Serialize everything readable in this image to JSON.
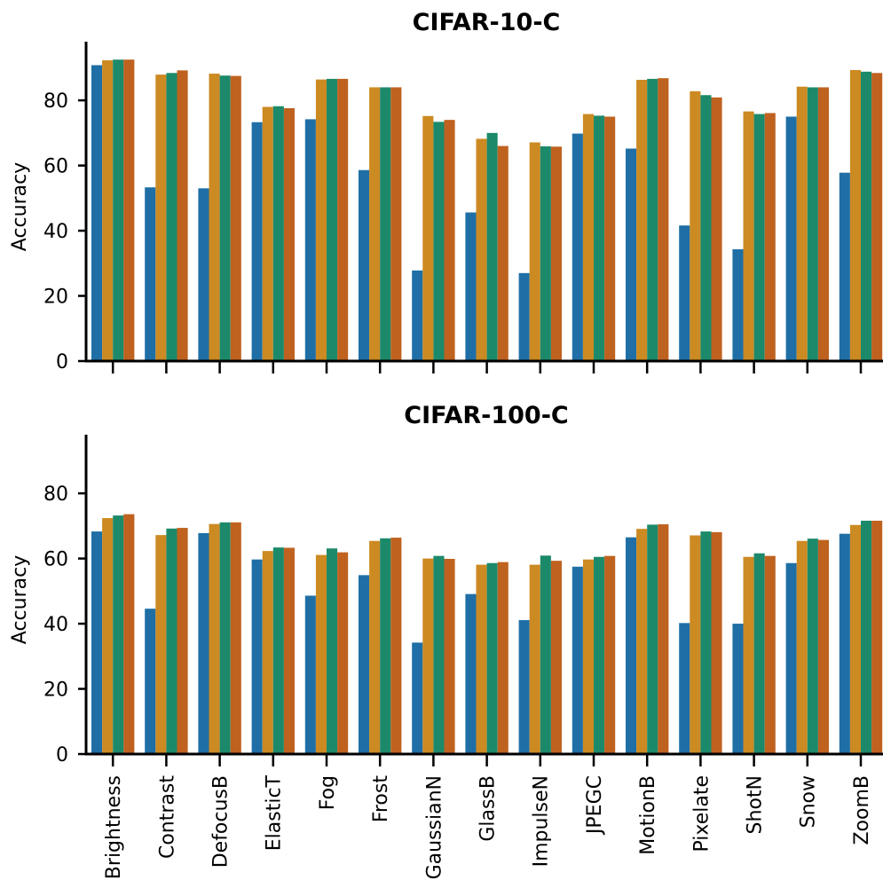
{
  "chart_data": [
    {
      "type": "bar",
      "title": "CIFAR-10-C",
      "xlabel": "",
      "ylabel": "Accuracy",
      "ylim": [
        0,
        98
      ],
      "yticks": [
        0,
        20,
        40,
        60,
        80
      ],
      "show_x_tick_labels": false,
      "categories": [
        "Brightness",
        "Contrast",
        "DefocusB",
        "ElasticT",
        "Fog",
        "Frost",
        "GaussianN",
        "GlassB",
        "ImpulseN",
        "JPEGC",
        "MotionB",
        "Pixelate",
        "ShotN",
        "Snow",
        "ZoomB"
      ],
      "series": [
        {
          "color": "#1f6fa6",
          "values": [
            90.8,
            53.3,
            53.0,
            73.3,
            74.2,
            58.6,
            27.8,
            45.6,
            27.0,
            69.8,
            65.2,
            41.6,
            34.3,
            75.0,
            57.8
          ]
        },
        {
          "color": "#cc8a22",
          "values": [
            92.3,
            87.9,
            88.2,
            78.0,
            86.4,
            84.0,
            75.2,
            68.2,
            67.1,
            75.8,
            86.3,
            82.8,
            76.6,
            84.2,
            89.3
          ]
        },
        {
          "color": "#1c8a6a",
          "values": [
            92.5,
            88.4,
            87.6,
            78.2,
            86.6,
            84.0,
            73.4,
            70.0,
            65.9,
            75.3,
            86.6,
            81.6,
            75.8,
            84.0,
            88.8
          ]
        },
        {
          "color": "#bf6220",
          "values": [
            92.5,
            89.2,
            87.5,
            77.6,
            86.6,
            84.0,
            74.0,
            66.0,
            65.8,
            75.0,
            86.8,
            80.9,
            76.1,
            84.0,
            88.4
          ]
        }
      ],
      "grid": false,
      "legend": "none"
    },
    {
      "type": "bar",
      "title": "CIFAR-100-C",
      "xlabel": "",
      "ylabel": "Accuracy",
      "ylim": [
        0,
        98
      ],
      "yticks": [
        0,
        20,
        40,
        60,
        80
      ],
      "show_x_tick_labels": true,
      "categories": [
        "Brightness",
        "Contrast",
        "DefocusB",
        "ElasticT",
        "Fog",
        "Frost",
        "GaussianN",
        "GlassB",
        "ImpulseN",
        "JPEGC",
        "MotionB",
        "Pixelate",
        "ShotN",
        "Snow",
        "ZoomB"
      ],
      "series": [
        {
          "color": "#1f6fa6",
          "values": [
            68.3,
            44.6,
            67.8,
            59.7,
            48.6,
            54.9,
            34.2,
            49.1,
            41.1,
            57.5,
            66.5,
            40.2,
            40.0,
            58.6,
            67.6
          ]
        },
        {
          "color": "#cc8a22",
          "values": [
            72.4,
            67.2,
            70.6,
            62.3,
            61.1,
            65.4,
            60.0,
            58.1,
            58.1,
            59.7,
            69.1,
            67.1,
            60.5,
            65.4,
            70.3
          ]
        },
        {
          "color": "#1c8a6a",
          "values": [
            73.2,
            69.2,
            71.1,
            63.4,
            63.1,
            66.2,
            60.8,
            58.6,
            60.9,
            60.5,
            70.4,
            68.3,
            61.6,
            66.1,
            71.6
          ]
        },
        {
          "color": "#bf6220",
          "values": [
            73.6,
            69.4,
            71.1,
            63.3,
            61.9,
            66.4,
            59.9,
            58.9,
            59.3,
            60.8,
            70.5,
            68.1,
            60.8,
            65.7,
            71.6
          ]
        }
      ],
      "grid": false,
      "legend": "none"
    }
  ]
}
